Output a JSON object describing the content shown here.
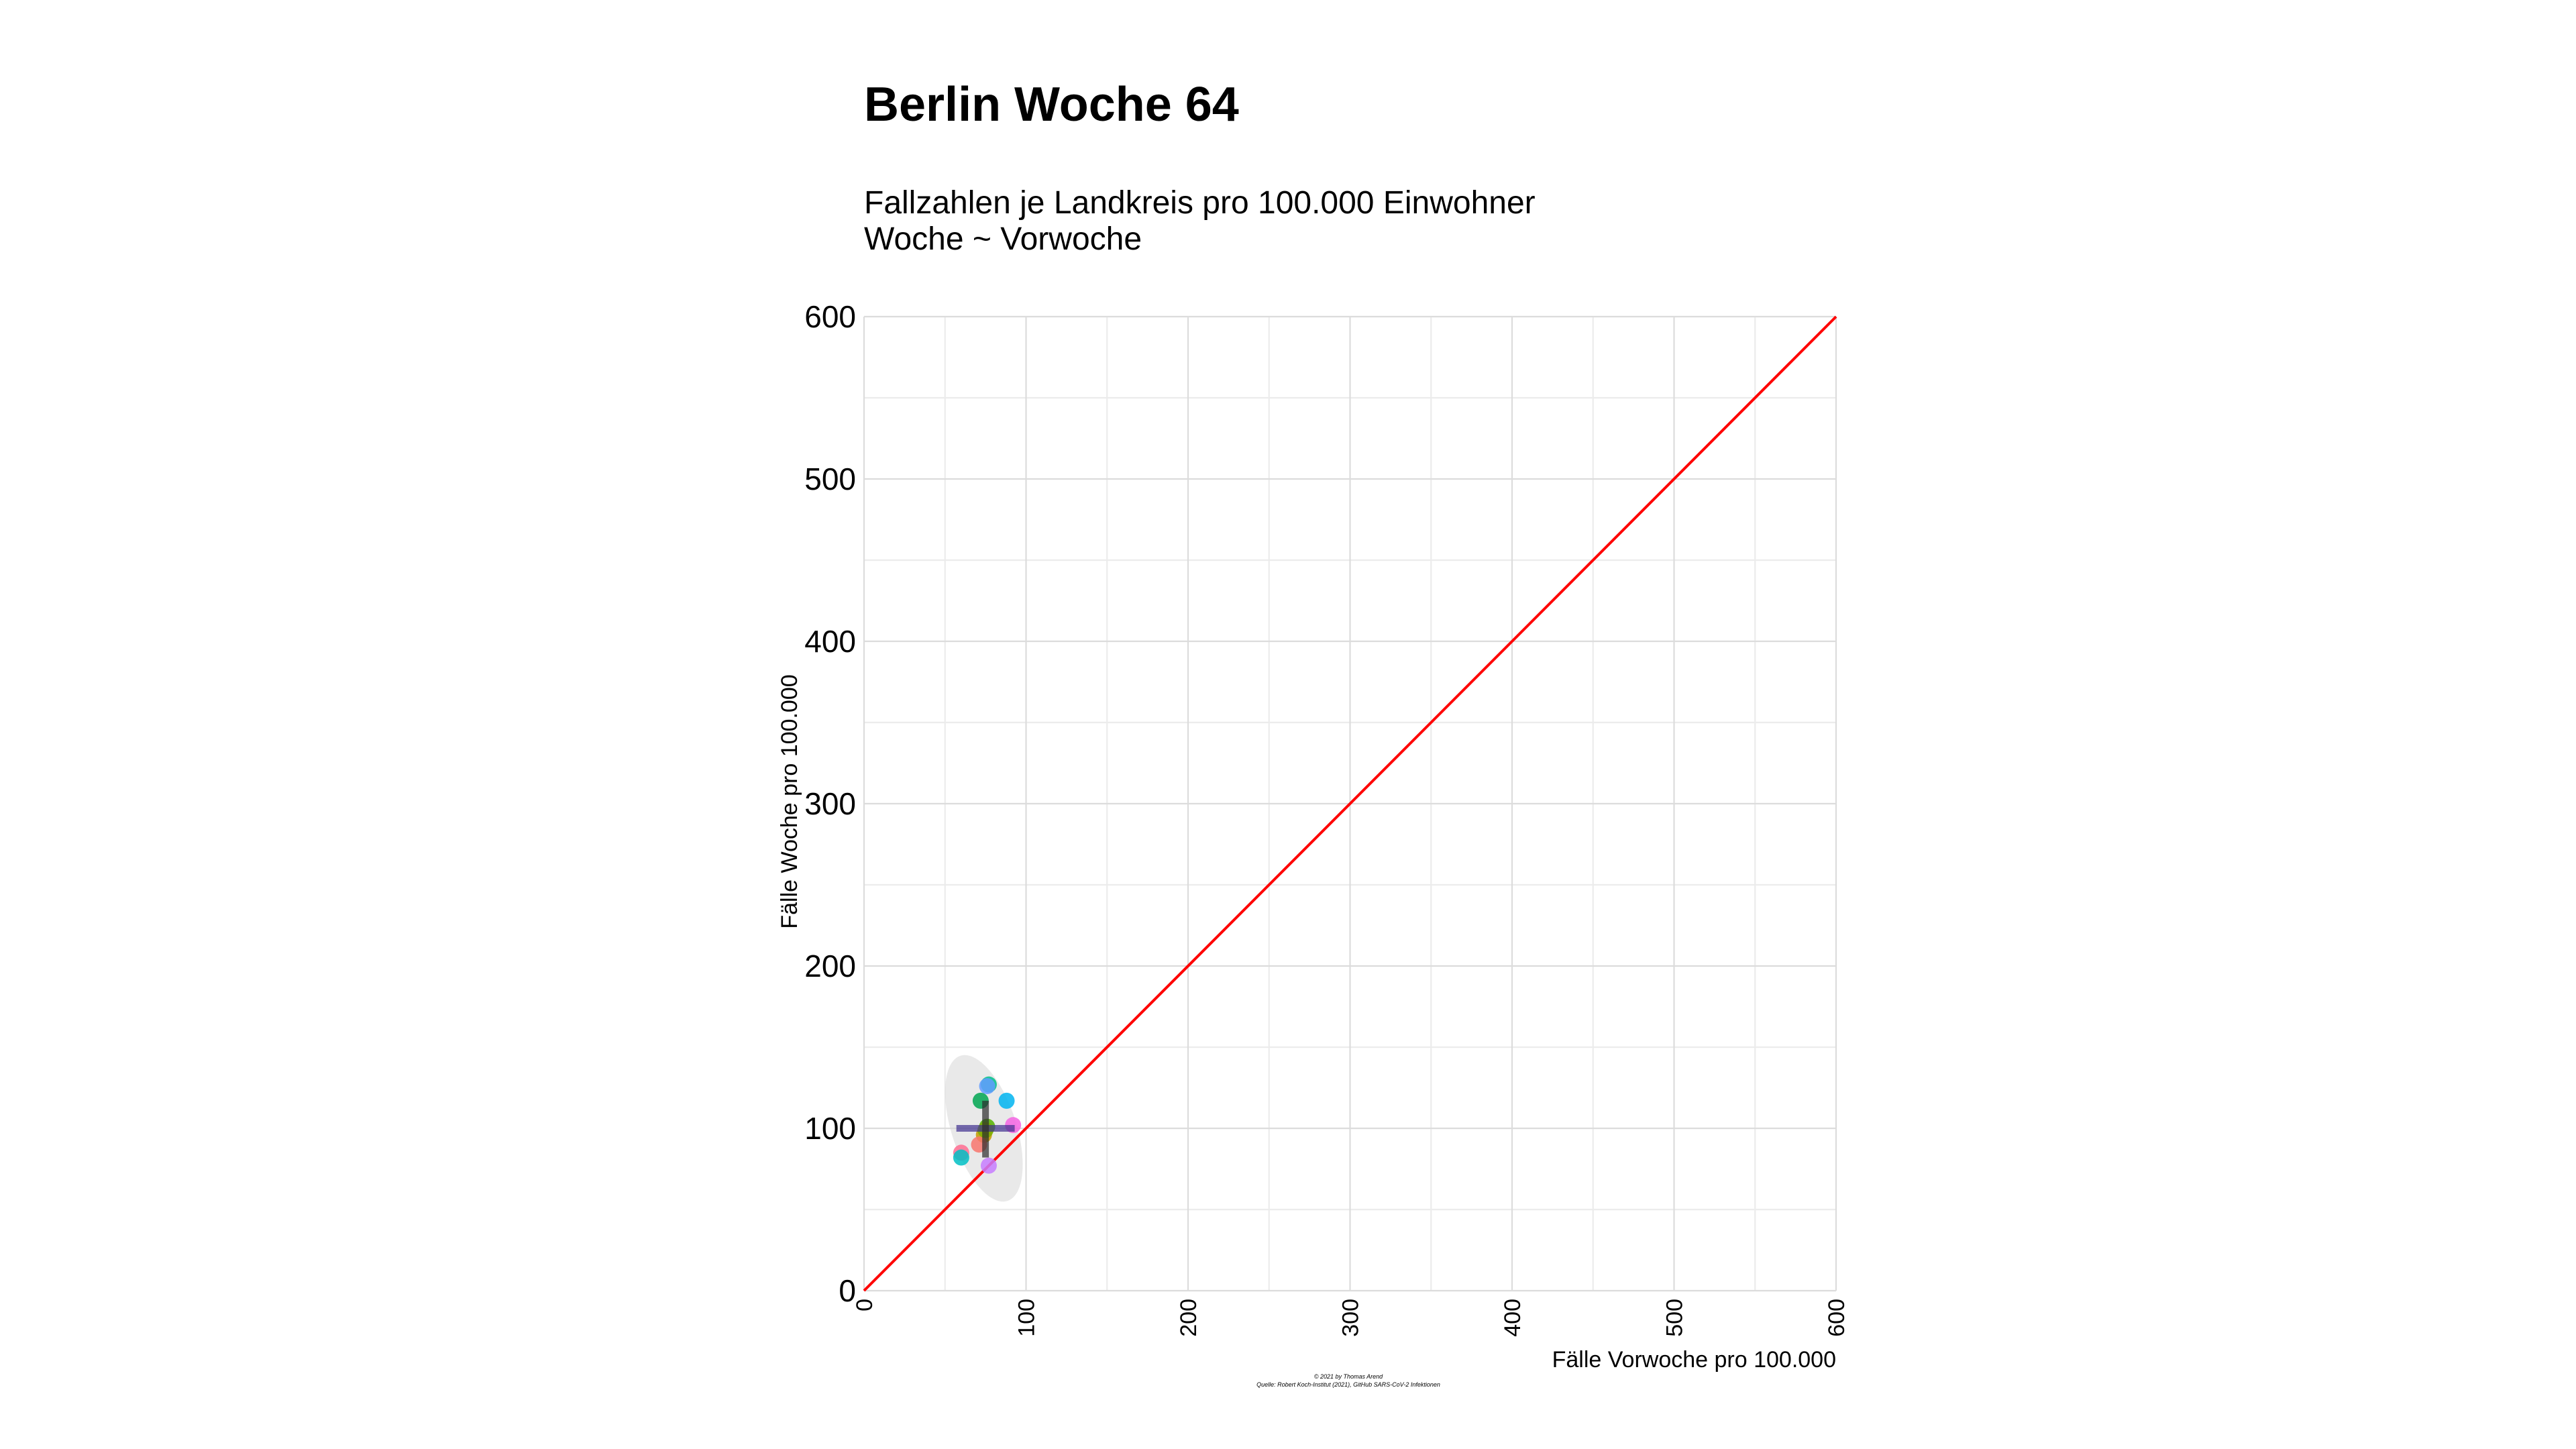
{
  "chart_data": {
    "type": "scatter",
    "title": "Berlin Woche 64",
    "subtitle_lines": [
      "Fallzahlen je Landkreis pro 100.000 Einwohner",
      "Woche ~ Vorwoche"
    ],
    "xlabel": "Fälle Vorwoche pro 100.000",
    "ylabel": "Fälle Woche pro 100.000",
    "xlim": [
      0,
      600
    ],
    "ylim": [
      0,
      600
    ],
    "x_ticks": [
      0,
      100,
      200,
      300,
      400,
      500,
      600
    ],
    "x_tick_labels": [
      "0",
      "100",
      "200",
      "300",
      "400",
      "500",
      "600"
    ],
    "y_ticks": [
      0,
      100,
      200,
      300,
      400,
      500,
      600
    ],
    "y_tick_labels": [
      "0",
      "100",
      "200",
      "300",
      "400",
      "500",
      "600"
    ],
    "grid": true,
    "reference_line": {
      "from": [
        0,
        0
      ],
      "to": [
        600,
        600
      ],
      "color": "#ff0000"
    },
    "points": [
      {
        "x": 77,
        "y": 127,
        "color": "#00c08b"
      },
      {
        "x": 76,
        "y": 126,
        "color": "#619cff"
      },
      {
        "x": 88,
        "y": 117,
        "color": "#00b4f0"
      },
      {
        "x": 72,
        "y": 117,
        "color": "#00a651"
      },
      {
        "x": 92,
        "y": 102,
        "color": "#f564e3"
      },
      {
        "x": 76,
        "y": 101,
        "color": "#53b400"
      },
      {
        "x": 74,
        "y": 96,
        "color": "#c49a00"
      },
      {
        "x": 71,
        "y": 90,
        "color": "#f8766d"
      },
      {
        "x": 60,
        "y": 85,
        "color": "#ff6c91"
      },
      {
        "x": 60,
        "y": 82,
        "color": "#00bfc4"
      },
      {
        "x": 77,
        "y": 77,
        "color": "#c77cff"
      },
      {
        "x": 75,
        "y": 99,
        "color": "#7cae00"
      }
    ],
    "ellipse": {
      "cx": 74,
      "cy": 100,
      "rx": 20,
      "ry": 47,
      "angle_deg": -18,
      "color": "#d3d3d3"
    },
    "mean_cross": {
      "x": 75,
      "y": 100,
      "x_range": [
        57,
        93
      ],
      "y_range": [
        82,
        117
      ],
      "color": "#3f2f8f"
    },
    "caption_lines": [
      "© 2021 by Thomas Arend",
      "Quelle: Robert Koch-Institut (2021), GitHub SARS-CoV-2 Infektionen"
    ]
  }
}
